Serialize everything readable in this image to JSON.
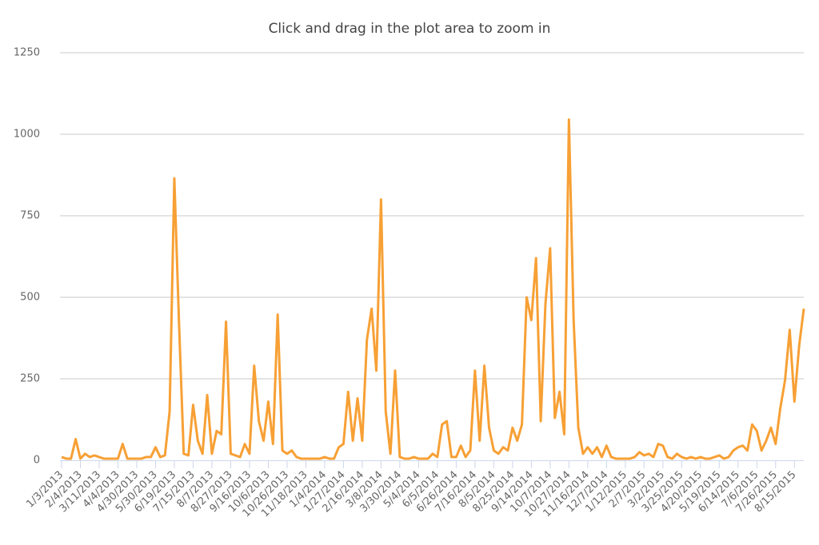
{
  "chart_data": {
    "type": "line",
    "title": "Click and drag in the plot area to zoom in",
    "categories": [
      "1/3/2013",
      null,
      null,
      null,
      "2/4/2013",
      null,
      null,
      null,
      "3/11/2013",
      null,
      null,
      null,
      "4/4/2013",
      null,
      null,
      null,
      "4/30/2013",
      null,
      null,
      null,
      "5/30/2013",
      null,
      null,
      null,
      "6/19/2013",
      null,
      null,
      null,
      "7/15/2013",
      null,
      null,
      null,
      "8/7/2013",
      null,
      null,
      null,
      "8/27/2013",
      null,
      null,
      null,
      "9/16/2013",
      null,
      null,
      null,
      "10/6/2013",
      null,
      null,
      null,
      "10/26/2013",
      null,
      null,
      null,
      "11/18/2013",
      null,
      null,
      null,
      "1/4/2014",
      null,
      null,
      null,
      "1/27/2014",
      null,
      null,
      null,
      "2/16/2014",
      null,
      null,
      null,
      "3/8/2014",
      null,
      null,
      null,
      "3/30/2014",
      null,
      null,
      null,
      "5/4/2014",
      null,
      null,
      null,
      "6/5/2014",
      null,
      null,
      null,
      "6/26/2014",
      null,
      null,
      null,
      "7/16/2014",
      null,
      null,
      null,
      "8/5/2014",
      null,
      null,
      null,
      "8/25/2014",
      null,
      null,
      null,
      "9/14/2014",
      null,
      null,
      null,
      "10/7/2014",
      null,
      null,
      null,
      "10/27/2014",
      null,
      null,
      null,
      "11/16/2014",
      null,
      null,
      null,
      "12/7/2014",
      null,
      null,
      null,
      "1/12/2015",
      null,
      null,
      null,
      "2/7/2015",
      null,
      null,
      null,
      "3/2/2015",
      null,
      null,
      null,
      "3/25/2015",
      null,
      null,
      null,
      "4/20/2015",
      null,
      null,
      null,
      "5/19/2015",
      null,
      null,
      null,
      "6/14/2015",
      null,
      null,
      null,
      "7/6/2015",
      null,
      null,
      null,
      "7/26/2015",
      null,
      null,
      null,
      "8/15/2015",
      null,
      null
    ],
    "values": [
      10,
      5,
      5,
      65,
      5,
      20,
      10,
      15,
      10,
      5,
      5,
      5,
      5,
      50,
      5,
      5,
      5,
      5,
      10,
      10,
      40,
      10,
      15,
      150,
      865,
      420,
      20,
      15,
      170,
      60,
      20,
      200,
      20,
      90,
      80,
      425,
      20,
      15,
      10,
      50,
      20,
      290,
      120,
      60,
      180,
      50,
      447,
      30,
      20,
      30,
      10,
      5,
      5,
      5,
      5,
      5,
      10,
      5,
      5,
      40,
      50,
      210,
      60,
      190,
      60,
      370,
      465,
      275,
      800,
      150,
      20,
      275,
      10,
      5,
      5,
      10,
      5,
      5,
      5,
      20,
      10,
      110,
      120,
      10,
      10,
      45,
      10,
      30,
      275,
      60,
      290,
      100,
      30,
      20,
      40,
      30,
      100,
      60,
      110,
      500,
      430,
      620,
      120,
      480,
      650,
      130,
      210,
      80,
      1045,
      430,
      100,
      20,
      40,
      20,
      40,
      10,
      45,
      10,
      5,
      5,
      5,
      5,
      10,
      25,
      15,
      20,
      10,
      50,
      45,
      10,
      5,
      20,
      10,
      5,
      10,
      5,
      10,
      5,
      5,
      10,
      15,
      5,
      10,
      30,
      40,
      45,
      30,
      110,
      90,
      30,
      60,
      100,
      50,
      160,
      245,
      400,
      180,
      350,
      465
    ],
    "color": "#f7a035",
    "ylim": [
      0,
      1250
    ],
    "yticks": [
      0,
      250,
      500,
      750,
      1000,
      1250
    ],
    "grid": true
  }
}
